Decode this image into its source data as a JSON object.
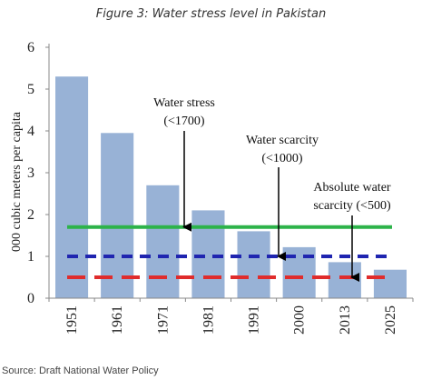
{
  "figure_title": "Figure 3: Water stress level in Pakistan",
  "source": "Source:  Draft National Water Policy",
  "chart_data": {
    "type": "bar",
    "ylabel": "000 cubic meters per capita",
    "xlabel": "",
    "ylim": [
      0,
      6
    ],
    "yticks": [
      "0",
      "1",
      "2",
      "3",
      "4",
      "5",
      "6"
    ],
    "categories": [
      "1951",
      "1961",
      "1971",
      "1981",
      "1991",
      "2000",
      "2013",
      "2025"
    ],
    "values": [
      5.3,
      3.95,
      2.7,
      2.1,
      1.6,
      1.22,
      0.86,
      0.68
    ],
    "bar_color": "#98b2d6",
    "thresholds": [
      {
        "value": 1.7,
        "color": "#2db34a",
        "style": "solid",
        "label_lines": [
          "Water stress",
          "(<1700)"
        ],
        "arrow_category": "1971"
      },
      {
        "value": 1.0,
        "color": "#1f25b0",
        "style": "dashed",
        "label_lines": [
          "Water scarcity",
          "(<1000)"
        ],
        "arrow_category": "1991"
      },
      {
        "value": 0.5,
        "color": "#e02c2c",
        "style": "dashed",
        "label_lines": [
          "Absolute water",
          "scarcity (<500)"
        ],
        "arrow_category": "2013"
      }
    ]
  }
}
